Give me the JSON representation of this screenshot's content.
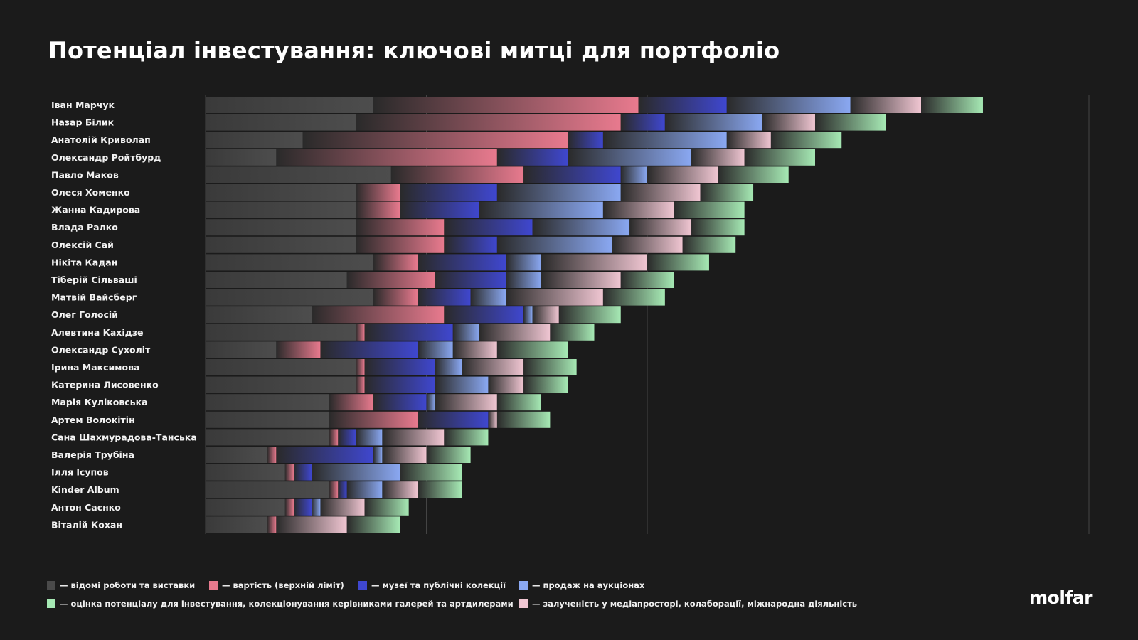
{
  "title": "Потенціал інвестування: ключові митці для портфоліо",
  "logo": "molfar",
  "colors": {
    "works": "#4a4a4a",
    "price": "#e87a8e",
    "museums": "#3f47cf",
    "auctions": "#8aa8f2",
    "media": "#f0c6d2",
    "potential": "#a6e9b4"
  },
  "chart_data": {
    "type": "bar",
    "orientation": "horizontal",
    "stacked": true,
    "grid": true,
    "xlim": [
      0,
      100
    ],
    "legend_position": "bottom",
    "categories": [
      "Іван Марчук",
      "Назар Білик",
      "Анатолій Криволап",
      "Олександр Ройтбурд",
      "Павло Маков",
      "Олеся Хоменко",
      "Жанна Кадирова",
      "Влада Ралко",
      "Олексій Сай",
      "Нікіта Кадан",
      "Тіберій Сільваші",
      "Матвій Вайсберг",
      "Олег Голосій",
      "Алевтина Кахідзе",
      "Олександр Сухоліт",
      "Ірина Максимова",
      "Катерина Лисовенко",
      "Марія Куліковська",
      "Артем Волокітін",
      "Сана Шахмурадова-Танська",
      "Валерія Трубіна",
      "Ілля Ісупов",
      "Kinder Album",
      "Антон Саєнко",
      "Віталій Кохан"
    ],
    "series": [
      {
        "key": "works",
        "name": "— відомі роботи та виставки",
        "values": [
          19,
          17,
          11,
          8,
          21,
          17,
          17,
          17,
          17,
          19,
          16,
          19,
          12,
          17,
          8,
          17,
          17,
          14,
          14,
          14,
          7,
          9,
          14,
          9,
          7
        ]
      },
      {
        "key": "price",
        "name": "— вартість (верхній ліміт)",
        "values": [
          30,
          30,
          30,
          25,
          15,
          5,
          5,
          10,
          10,
          5,
          10,
          5,
          15,
          1,
          5,
          1,
          1,
          5,
          10,
          1,
          1,
          1,
          1,
          1,
          1
        ]
      },
      {
        "key": "museums",
        "name": "— музеї та публічні колекції",
        "values": [
          10,
          5,
          4,
          8,
          11,
          11,
          9,
          10,
          6,
          10,
          8,
          6,
          9,
          10,
          11,
          8,
          8,
          6,
          8,
          2,
          11,
          2,
          1,
          2,
          0
        ]
      },
      {
        "key": "auctions",
        "name": "— продаж на аукціонах",
        "values": [
          14,
          11,
          14,
          14,
          3,
          14,
          14,
          11,
          13,
          4,
          4,
          4,
          1,
          3,
          4,
          3,
          6,
          1,
          0,
          3,
          1,
          10,
          4,
          1,
          0
        ]
      },
      {
        "key": "media",
        "name": "— залученість у медіапросторі, колаборації, міжнародна діяльність",
        "values": [
          8,
          6,
          5,
          6,
          8,
          9,
          8,
          7,
          8,
          12,
          9,
          11,
          3,
          8,
          5,
          7,
          4,
          7,
          1,
          7,
          5,
          0,
          4,
          5,
          8
        ]
      },
      {
        "key": "potential",
        "name": "— оцінка потенціалу для інвестування, колекціонування керівниками галерей та артдилерами",
        "values": [
          7,
          8,
          8,
          8,
          8,
          6,
          8,
          6,
          6,
          7,
          6,
          7,
          7,
          5,
          8,
          6,
          5,
          5,
          6,
          5,
          5,
          7,
          5,
          5,
          6
        ]
      }
    ]
  }
}
